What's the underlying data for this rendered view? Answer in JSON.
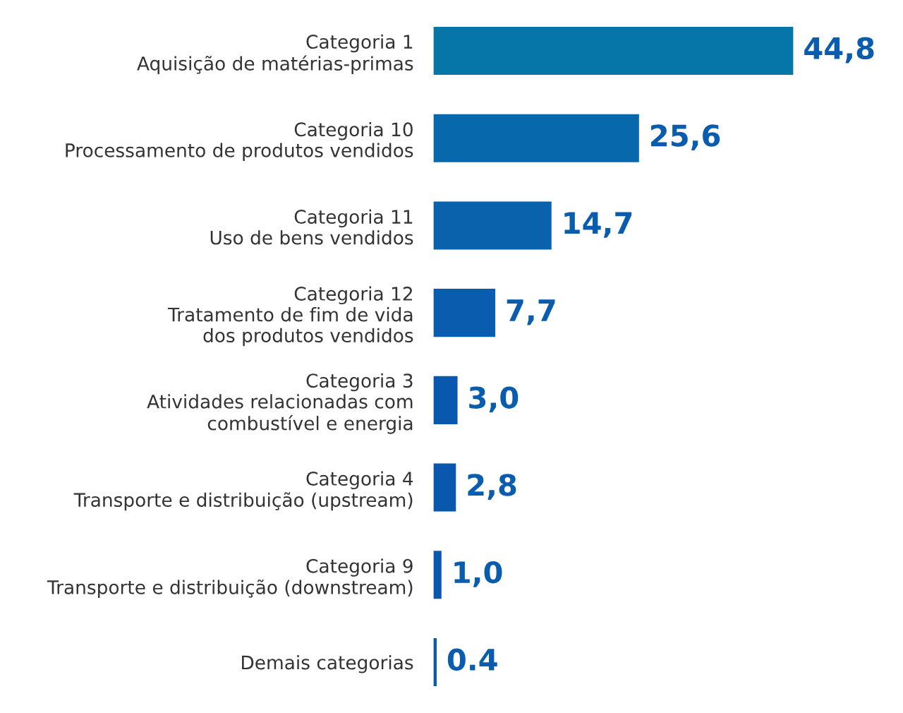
{
  "chart_data": {
    "type": "bar",
    "orientation": "horizontal",
    "categories": [
      "Categoria 1\nAquisição de matérias-primas",
      "Categoria 10\nProcessamento de produtos vendidos",
      "Categoria 11\nUso de bens vendidos",
      "Categoria 12\nTratamento de fim de vida\ndos produtos vendidos",
      "Categoria 3\nAtividades relacionadas com\ncombustível e energia",
      "Categoria 4\nTransporte e distribuição (upstream)",
      "Categoria 9\nTransporte e distribuição (downstream)",
      "Demais categorias"
    ],
    "values": [
      44.8,
      25.6,
      14.7,
      7.7,
      3.0,
      2.8,
      1.0,
      0.4
    ],
    "value_labels": [
      "44,8",
      "25,6",
      "14,7",
      "7,7",
      "3,0",
      "2,8",
      "1,0",
      "0.4"
    ],
    "colors": [
      "#0676a8",
      "#0868ac",
      "#0a62ad",
      "#0a5cae",
      "#0a58ae",
      "#0a58ae",
      "#0a58ae",
      "#0a58ae"
    ],
    "grid": false,
    "legend": false
  }
}
